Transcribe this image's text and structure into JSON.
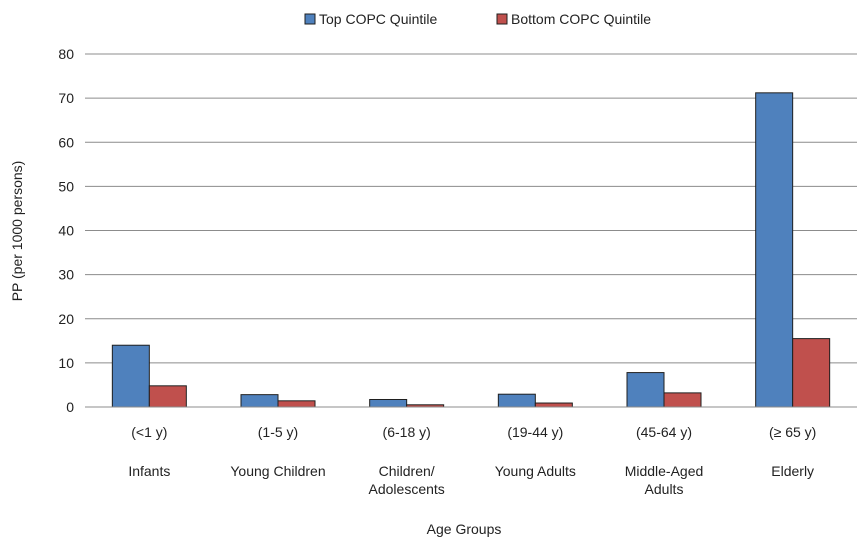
{
  "chart_data": {
    "type": "bar",
    "title": "",
    "xlabel": "Age Groups",
    "ylabel": "PP (per 1000 persons)",
    "ylim": [
      0,
      80
    ],
    "yticks": [
      "0",
      "10",
      "20",
      "30",
      "40",
      "50",
      "60",
      "70",
      "80"
    ],
    "grid": true,
    "legend_position": "top-center",
    "categories": [
      {
        "range": "(<1 y)",
        "name": [
          "Infants"
        ]
      },
      {
        "range": "(1-5 y)",
        "name": [
          "Young Children"
        ]
      },
      {
        "range": "(6-18 y)",
        "name": [
          "Children/",
          "Adolescents"
        ]
      },
      {
        "range": "(19-44 y)",
        "name": [
          "Young Adults"
        ]
      },
      {
        "range": "(45-64 y)",
        "name": [
          "Middle-Aged",
          "Adults"
        ]
      },
      {
        "range": "(≥ 65 y)",
        "name": [
          "Elderly"
        ]
      }
    ],
    "series": [
      {
        "name": "Top COPC Quintile",
        "color": "#4f81bd",
        "values": [
          14,
          2.8,
          1.7,
          2.9,
          7.8,
          71.2
        ]
      },
      {
        "name": "Bottom COPC Quintile",
        "color": "#c0504d",
        "values": [
          4.8,
          1.4,
          0.5,
          0.9,
          3.2,
          15.5
        ]
      }
    ]
  }
}
